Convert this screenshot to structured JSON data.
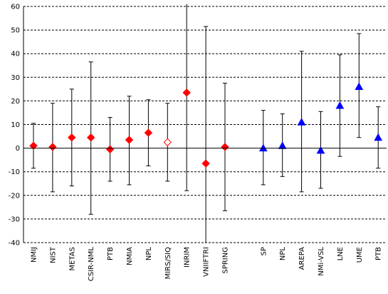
{
  "chart_data": {
    "type": "scatter",
    "title": "",
    "xlabel": "",
    "ylabel": "",
    "ylim": [
      -40,
      60
    ],
    "ytick_step": 10,
    "grid": "horizontal-dashed",
    "colors": {
      "red": "#ff0000",
      "blue": "#0000ff",
      "open_red": "#ff0000"
    },
    "points": [
      {
        "label": "NMIJ",
        "value": 1.0,
        "err_low": -8.5,
        "err_high": 10.5,
        "marker": "diamond",
        "color": "#ff0000"
      },
      {
        "label": "NIST",
        "value": 0.5,
        "err_low": -18.5,
        "err_high": 19.0,
        "marker": "diamond",
        "color": "#ff0000"
      },
      {
        "label": "METAS",
        "value": 4.5,
        "err_low": -16.0,
        "err_high": 25.0,
        "marker": "diamond",
        "color": "#ff0000"
      },
      {
        "label": "CSIR-NML",
        "value": 4.5,
        "err_low": -28.0,
        "err_high": 36.5,
        "marker": "diamond",
        "color": "#ff0000"
      },
      {
        "label": "PTB",
        "value": -0.5,
        "err_low": -14.0,
        "err_high": 13.0,
        "marker": "diamond",
        "color": "#ff0000"
      },
      {
        "label": "NMIA",
        "value": 3.5,
        "err_low": -15.5,
        "err_high": 22.0,
        "marker": "diamond",
        "color": "#ff0000"
      },
      {
        "label": "NPL",
        "value": 6.5,
        "err_low": -7.5,
        "err_high": 20.5,
        "marker": "diamond",
        "color": "#ff0000"
      },
      {
        "label": "MIRS/SIQ",
        "value": 2.5,
        "err_low": -14.0,
        "err_high": 19.0,
        "marker": "diamond-open",
        "color": "#ff0000"
      },
      {
        "label": "INRIM",
        "value": 23.5,
        "err_low": -18.0,
        "err_high": 62.0,
        "marker": "diamond",
        "color": "#ff0000"
      },
      {
        "label": "VNIIFTRI",
        "value": -6.5,
        "err_low": -41.0,
        "err_high": 51.5,
        "marker": "diamond",
        "color": "#ff0000"
      },
      {
        "label": "SPRING",
        "value": 0.5,
        "err_low": -26.5,
        "err_high": 27.5,
        "marker": "diamond",
        "color": "#ff0000"
      },
      {
        "label": "SP",
        "value": 0.0,
        "err_low": -15.5,
        "err_high": 16.0,
        "marker": "triangle",
        "color": "#0000ff"
      },
      {
        "label": "NPL",
        "value": 1.0,
        "err_low": -12.0,
        "err_high": 14.5,
        "marker": "triangle",
        "color": "#0000ff"
      },
      {
        "label": "AREPA",
        "value": 11.0,
        "err_low": -18.5,
        "err_high": 41.0,
        "marker": "triangle",
        "color": "#0000ff"
      },
      {
        "label": "NMi-VSL",
        "value": -1.0,
        "err_low": -17.0,
        "err_high": 15.5,
        "marker": "triangle",
        "color": "#0000ff"
      },
      {
        "label": "LNE",
        "value": 18.0,
        "err_low": -3.5,
        "err_high": 39.5,
        "marker": "triangle",
        "color": "#0000ff"
      },
      {
        "label": "UME",
        "value": 26.0,
        "err_low": 4.5,
        "err_high": 48.5,
        "marker": "triangle",
        "color": "#0000ff"
      },
      {
        "label": "PTB",
        "value": 4.5,
        "err_low": -8.5,
        "err_high": 17.5,
        "marker": "triangle",
        "color": "#0000ff"
      }
    ]
  }
}
